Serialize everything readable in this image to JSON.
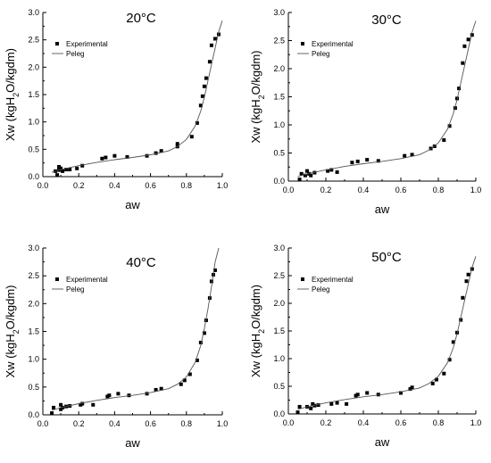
{
  "chart_data": [
    {
      "type": "scatter",
      "title": "20°C",
      "xlabel": "aw",
      "ylabel": "Xw (kgH2O/kgdm)",
      "xlim": [
        0.0,
        1.0
      ],
      "ylim": [
        0.0,
        3.0
      ],
      "xticks": [
        "0.0",
        "0.2",
        "0.4",
        "0.6",
        "0.8",
        "1.0"
      ],
      "yticks": [
        "0.0",
        "0.5",
        "1.0",
        "1.5",
        "2.0",
        "2.5",
        "3.0"
      ],
      "legend": "top-left",
      "series": [
        {
          "name": "Experimental",
          "kind": "points",
          "x": [
            0.07,
            0.08,
            0.09,
            0.09,
            0.1,
            0.11,
            0.13,
            0.15,
            0.19,
            0.22,
            0.33,
            0.35,
            0.4,
            0.47,
            0.58,
            0.63,
            0.66,
            0.75,
            0.75,
            0.83,
            0.86,
            0.88,
            0.89,
            0.9,
            0.91,
            0.93,
            0.94,
            0.96,
            0.98
          ],
          "y": [
            0.1,
            0.03,
            0.18,
            0.12,
            0.15,
            0.1,
            0.13,
            0.13,
            0.15,
            0.2,
            0.33,
            0.35,
            0.38,
            0.36,
            0.38,
            0.43,
            0.47,
            0.55,
            0.6,
            0.73,
            0.98,
            1.3,
            1.47,
            1.65,
            1.8,
            2.1,
            2.4,
            2.52,
            2.6
          ]
        },
        {
          "name": "Peleg",
          "kind": "line",
          "x": [
            0.05,
            0.1,
            0.2,
            0.3,
            0.4,
            0.5,
            0.6,
            0.7,
            0.75,
            0.8,
            0.85,
            0.88,
            0.9,
            0.92,
            0.94,
            0.96,
            0.98,
            1.0
          ],
          "y": [
            0.08,
            0.13,
            0.2,
            0.26,
            0.31,
            0.35,
            0.4,
            0.47,
            0.55,
            0.68,
            0.93,
            1.2,
            1.45,
            1.75,
            2.05,
            2.35,
            2.65,
            2.85
          ]
        }
      ]
    },
    {
      "type": "scatter",
      "title": "30°C",
      "xlabel": "aw",
      "ylabel": "Xw (kgH2O/kgdm)",
      "xlim": [
        0.0,
        1.0
      ],
      "ylim": [
        0.0,
        3.0
      ],
      "xticks": [
        "0.0",
        "0.2",
        "0.4",
        "0.6",
        "0.8",
        "1.0"
      ],
      "yticks": [
        "0.0",
        "0.5",
        "1.0",
        "1.5",
        "2.0",
        "2.5",
        "3.0"
      ],
      "legend": "top-left",
      "series": [
        {
          "name": "Experimental",
          "kind": "points",
          "x": [
            0.06,
            0.07,
            0.09,
            0.1,
            0.11,
            0.12,
            0.14,
            0.21,
            0.23,
            0.26,
            0.34,
            0.37,
            0.42,
            0.48,
            0.62,
            0.66,
            0.76,
            0.78,
            0.83,
            0.86,
            0.89,
            0.9,
            0.91,
            0.93,
            0.94,
            0.96,
            0.98
          ],
          "y": [
            0.03,
            0.13,
            0.1,
            0.18,
            0.13,
            0.1,
            0.15,
            0.18,
            0.2,
            0.16,
            0.33,
            0.35,
            0.38,
            0.36,
            0.45,
            0.47,
            0.58,
            0.62,
            0.73,
            0.98,
            1.3,
            1.47,
            1.65,
            2.1,
            2.4,
            2.52,
            2.6
          ]
        },
        {
          "name": "Peleg",
          "kind": "line",
          "x": [
            0.05,
            0.1,
            0.2,
            0.3,
            0.4,
            0.5,
            0.6,
            0.7,
            0.75,
            0.8,
            0.85,
            0.88,
            0.9,
            0.92,
            0.94,
            0.96,
            0.98,
            1.0
          ],
          "y": [
            0.08,
            0.13,
            0.2,
            0.26,
            0.31,
            0.35,
            0.4,
            0.47,
            0.55,
            0.68,
            0.93,
            1.2,
            1.45,
            1.75,
            2.05,
            2.35,
            2.65,
            2.85
          ]
        }
      ]
    },
    {
      "type": "scatter",
      "title": "40°C",
      "xlabel": "aw",
      "ylabel": "Xw (kgH2O/kgdm)",
      "xlim": [
        0.0,
        1.0
      ],
      "ylim": [
        0.0,
        3.0
      ],
      "xticks": [
        "0.0",
        "0.2",
        "0.4",
        "0.6",
        "0.8",
        "1.0"
      ],
      "yticks": [
        "0.0",
        "0.5",
        "1.0",
        "1.5",
        "2.0",
        "2.5",
        "3.0"
      ],
      "legend": "top-left",
      "series": [
        {
          "name": "Experimental",
          "kind": "points",
          "x": [
            0.05,
            0.06,
            0.1,
            0.1,
            0.11,
            0.13,
            0.15,
            0.21,
            0.22,
            0.28,
            0.36,
            0.37,
            0.42,
            0.48,
            0.58,
            0.63,
            0.66,
            0.77,
            0.79,
            0.82,
            0.86,
            0.88,
            0.9,
            0.91,
            0.93,
            0.94,
            0.95,
            0.96
          ],
          "y": [
            0.03,
            0.13,
            0.1,
            0.18,
            0.13,
            0.15,
            0.16,
            0.18,
            0.2,
            0.18,
            0.33,
            0.35,
            0.38,
            0.35,
            0.38,
            0.45,
            0.47,
            0.55,
            0.62,
            0.73,
            0.98,
            1.3,
            1.47,
            1.7,
            2.1,
            2.4,
            2.52,
            2.6
          ]
        },
        {
          "name": "Peleg",
          "kind": "line",
          "x": [
            0.05,
            0.1,
            0.2,
            0.3,
            0.4,
            0.5,
            0.6,
            0.7,
            0.75,
            0.8,
            0.85,
            0.88,
            0.9,
            0.92,
            0.94,
            0.96,
            0.98
          ],
          "y": [
            0.08,
            0.13,
            0.2,
            0.26,
            0.31,
            0.35,
            0.4,
            0.47,
            0.55,
            0.68,
            0.95,
            1.25,
            1.55,
            1.9,
            2.3,
            2.75,
            3.0
          ]
        }
      ]
    },
    {
      "type": "scatter",
      "title": "50°C",
      "xlabel": "aw",
      "ylabel": "Xw (kgH2O/kgdm)",
      "xlim": [
        0.0,
        1.0
      ],
      "ylim": [
        0.0,
        3.0
      ],
      "xticks": [
        "0.0",
        "0.2",
        "0.4",
        "0.6",
        "0.8",
        "1.0"
      ],
      "yticks": [
        "0.0",
        "0.5",
        "1.0",
        "1.5",
        "2.0",
        "2.5",
        "3.0"
      ],
      "legend": "top-left",
      "series": [
        {
          "name": "Experimental",
          "kind": "points",
          "x": [
            0.05,
            0.06,
            0.1,
            0.12,
            0.13,
            0.14,
            0.16,
            0.23,
            0.26,
            0.31,
            0.36,
            0.37,
            0.42,
            0.48,
            0.6,
            0.65,
            0.66,
            0.77,
            0.79,
            0.83,
            0.86,
            0.88,
            0.9,
            0.92,
            0.93,
            0.95,
            0.96,
            0.98
          ],
          "y": [
            0.03,
            0.13,
            0.13,
            0.1,
            0.18,
            0.15,
            0.16,
            0.18,
            0.2,
            0.18,
            0.33,
            0.35,
            0.38,
            0.35,
            0.38,
            0.45,
            0.48,
            0.55,
            0.62,
            0.73,
            0.98,
            1.3,
            1.47,
            1.7,
            2.1,
            2.4,
            2.52,
            2.62
          ]
        },
        {
          "name": "Peleg",
          "kind": "line",
          "x": [
            0.05,
            0.1,
            0.2,
            0.3,
            0.4,
            0.5,
            0.6,
            0.7,
            0.75,
            0.8,
            0.85,
            0.88,
            0.9,
            0.92,
            0.94,
            0.96,
            0.98,
            1.0
          ],
          "y": [
            0.08,
            0.13,
            0.2,
            0.26,
            0.31,
            0.35,
            0.4,
            0.47,
            0.55,
            0.68,
            0.93,
            1.2,
            1.45,
            1.75,
            2.05,
            2.35,
            2.65,
            2.85
          ]
        }
      ]
    }
  ]
}
